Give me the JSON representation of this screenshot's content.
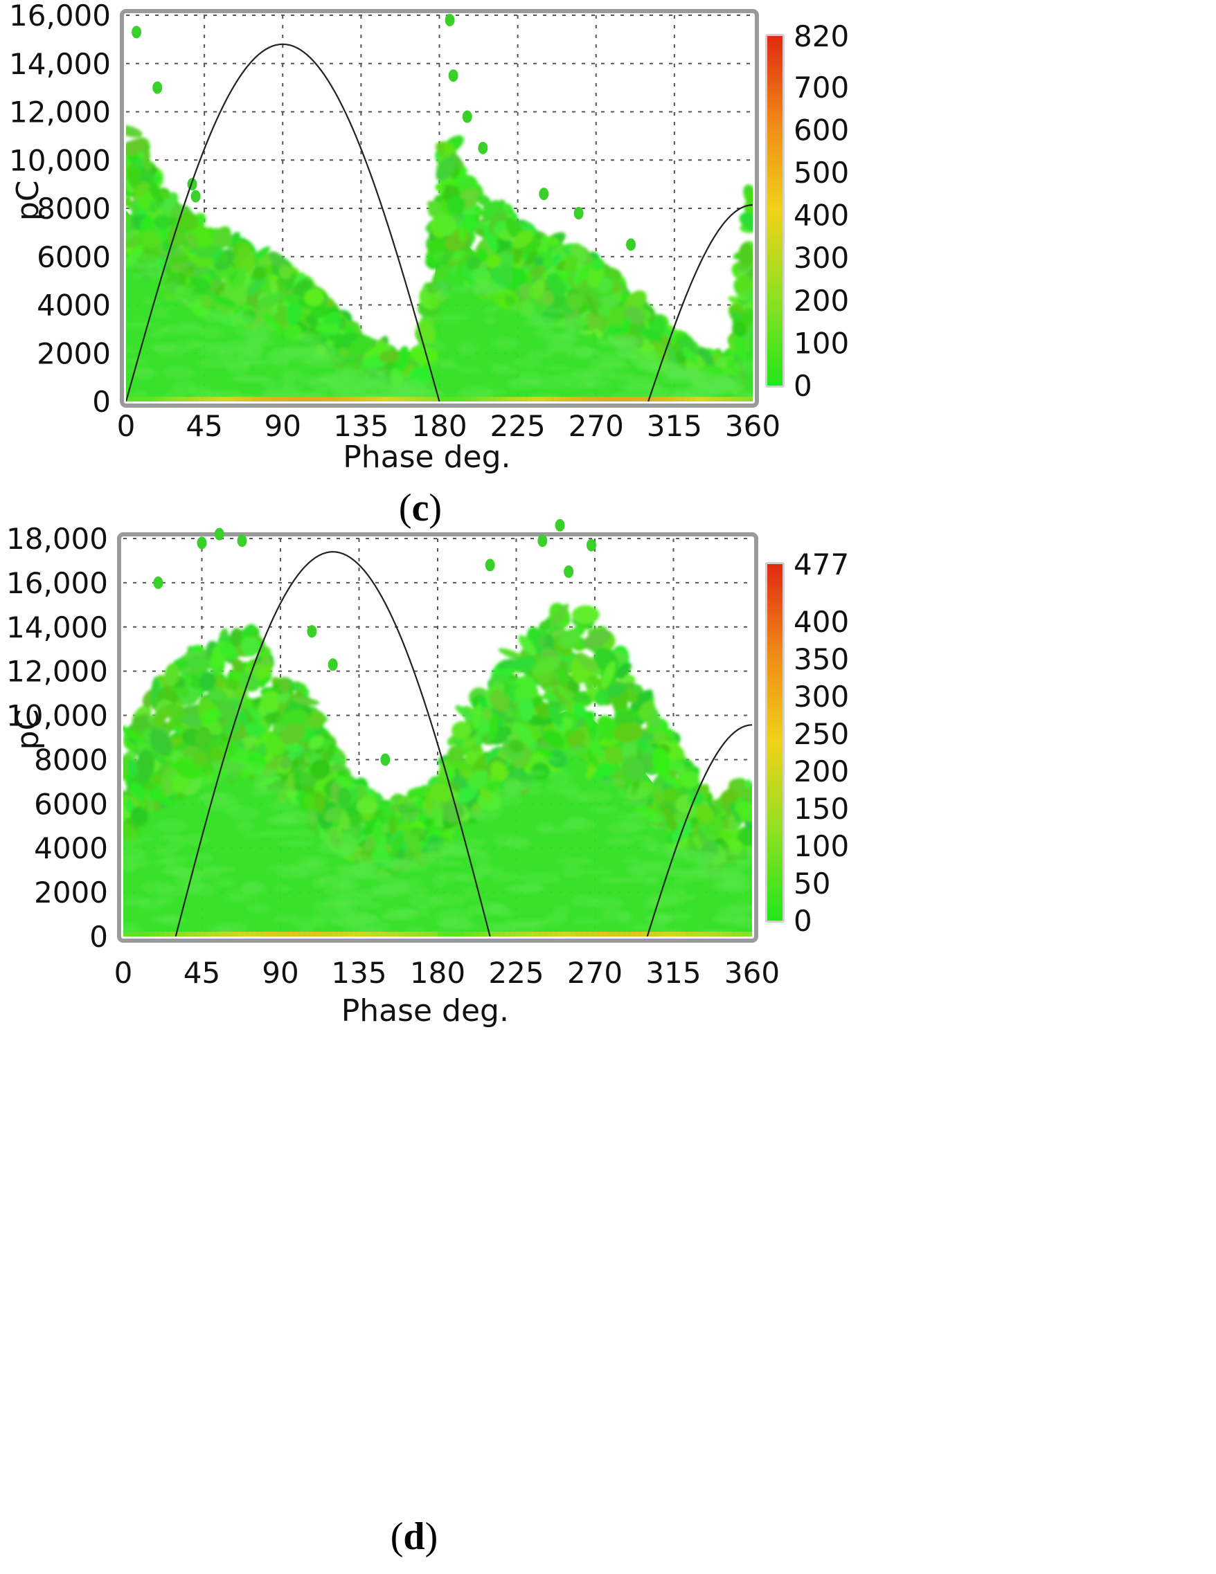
{
  "chart_data": [
    {
      "id": "c",
      "type": "heatmap",
      "subtype": "phase-resolved partial discharge (PRPD) pattern",
      "caption_label": "c",
      "xlabel": "Phase deg.",
      "ylabel": "pC",
      "xlim": [
        0,
        360
      ],
      "ylim": [
        0,
        16000
      ],
      "x_ticks": [
        0,
        45,
        90,
        135,
        180,
        225,
        270,
        315,
        360
      ],
      "x_tick_labels": [
        "0",
        "45",
        "90",
        "135",
        "180",
        "225",
        "270",
        "315",
        "360"
      ],
      "y_ticks": [
        0,
        2000,
        4000,
        6000,
        8000,
        10000,
        12000,
        14000,
        16000
      ],
      "y_tick_labels": [
        "0",
        "2000",
        "4000",
        "6000",
        "8000",
        "10,000",
        "12,000",
        "14,000",
        "16,000"
      ],
      "grid": true,
      "colorbar": {
        "min": 0,
        "max": 820,
        "ticks": [
          0,
          100,
          200,
          300,
          400,
          500,
          600,
          700,
          820
        ],
        "tick_labels": [
          "0",
          "100",
          "200",
          "300",
          "400",
          "500",
          "600",
          "700",
          "820"
        ],
        "colors": [
          "#22e61a",
          "#8ee022",
          "#f0d218",
          "#f08a18",
          "#e02a12"
        ]
      },
      "reference_sine": {
        "amplitude": 14800,
        "phase_offset_deg": 0
      },
      "density_envelope": [
        {
          "phase": 0,
          "max_pC": 11000
        },
        {
          "phase": 20,
          "max_pC": 8500
        },
        {
          "phase": 45,
          "max_pC": 7000
        },
        {
          "phase": 90,
          "max_pC": 5500
        },
        {
          "phase": 135,
          "max_pC": 2500
        },
        {
          "phase": 170,
          "max_pC": 1200
        },
        {
          "phase": 182,
          "max_pC": 11000
        },
        {
          "phase": 200,
          "max_pC": 8500
        },
        {
          "phase": 225,
          "max_pC": 7000
        },
        {
          "phase": 270,
          "max_pC": 5500
        },
        {
          "phase": 315,
          "max_pC": 2500
        },
        {
          "phase": 350,
          "max_pC": 1200
        },
        {
          "phase": 360,
          "max_pC": 9000
        }
      ],
      "outliers": [
        {
          "phase": 6,
          "pC": 15300
        },
        {
          "phase": 18,
          "pC": 13000
        },
        {
          "phase": 186,
          "pC": 15800
        },
        {
          "phase": 188,
          "pC": 13500
        },
        {
          "phase": 196,
          "pC": 11800
        },
        {
          "phase": 205,
          "pC": 10500
        },
        {
          "phase": 38,
          "pC": 9000
        },
        {
          "phase": 40,
          "pC": 8500
        },
        {
          "phase": 240,
          "pC": 8600
        },
        {
          "phase": 260,
          "pC": 7800
        },
        {
          "phase": 290,
          "pC": 6500
        }
      ]
    },
    {
      "id": "d",
      "type": "heatmap",
      "subtype": "phase-resolved partial discharge (PRPD) pattern",
      "caption_label": "d",
      "xlabel": "Phase deg.",
      "ylabel": "pC",
      "xlim": [
        0,
        360
      ],
      "ylim": [
        0,
        18000
      ],
      "x_ticks": [
        0,
        45,
        90,
        135,
        180,
        225,
        270,
        315,
        360
      ],
      "x_tick_labels": [
        "0",
        "45",
        "90",
        "135",
        "180",
        "225",
        "270",
        "315",
        "360"
      ],
      "y_ticks": [
        0,
        2000,
        4000,
        6000,
        8000,
        10000,
        12000,
        14000,
        16000,
        18000
      ],
      "y_tick_labels": [
        "0",
        "2000",
        "4000",
        "6000",
        "8000",
        "10,000",
        "12,000",
        "14,000",
        "16,000",
        "18,000"
      ],
      "grid": true,
      "colorbar": {
        "min": 0,
        "max": 477,
        "ticks": [
          0,
          50,
          100,
          150,
          200,
          250,
          300,
          350,
          400,
          477
        ],
        "tick_labels": [
          "0",
          "50",
          "100",
          "150",
          "200",
          "250",
          "300",
          "350",
          "400",
          "477"
        ],
        "colors": [
          "#22e61a",
          "#8ee022",
          "#f0d218",
          "#f08a18",
          "#e02a12"
        ]
      },
      "reference_sine": {
        "amplitude": 17400,
        "phase_offset_deg": -30
      },
      "density_envelope": [
        {
          "phase": 0,
          "max_pC": 8000
        },
        {
          "phase": 20,
          "max_pC": 11000
        },
        {
          "phase": 45,
          "max_pC": 12500
        },
        {
          "phase": 70,
          "max_pC": 13500
        },
        {
          "phase": 100,
          "max_pC": 11000
        },
        {
          "phase": 125,
          "max_pC": 7000
        },
        {
          "phase": 150,
          "max_pC": 5500
        },
        {
          "phase": 175,
          "max_pC": 6500
        },
        {
          "phase": 200,
          "max_pC": 10000
        },
        {
          "phase": 230,
          "max_pC": 13000
        },
        {
          "phase": 260,
          "max_pC": 14500
        },
        {
          "phase": 290,
          "max_pC": 11500
        },
        {
          "phase": 315,
          "max_pC": 8000
        },
        {
          "phase": 340,
          "max_pC": 5500
        },
        {
          "phase": 360,
          "max_pC": 7000
        }
      ],
      "outliers": [
        {
          "phase": 55,
          "pC": 18200
        },
        {
          "phase": 68,
          "pC": 17900
        },
        {
          "phase": 45,
          "pC": 17800
        },
        {
          "phase": 20,
          "pC": 16000
        },
        {
          "phase": 250,
          "pC": 18600
        },
        {
          "phase": 240,
          "pC": 17900
        },
        {
          "phase": 268,
          "pC": 17700
        },
        {
          "phase": 210,
          "pC": 16800
        },
        {
          "phase": 255,
          "pC": 16500
        },
        {
          "phase": 108,
          "pC": 13800
        },
        {
          "phase": 120,
          "pC": 12300
        },
        {
          "phase": 150,
          "pC": 8000
        }
      ]
    }
  ]
}
